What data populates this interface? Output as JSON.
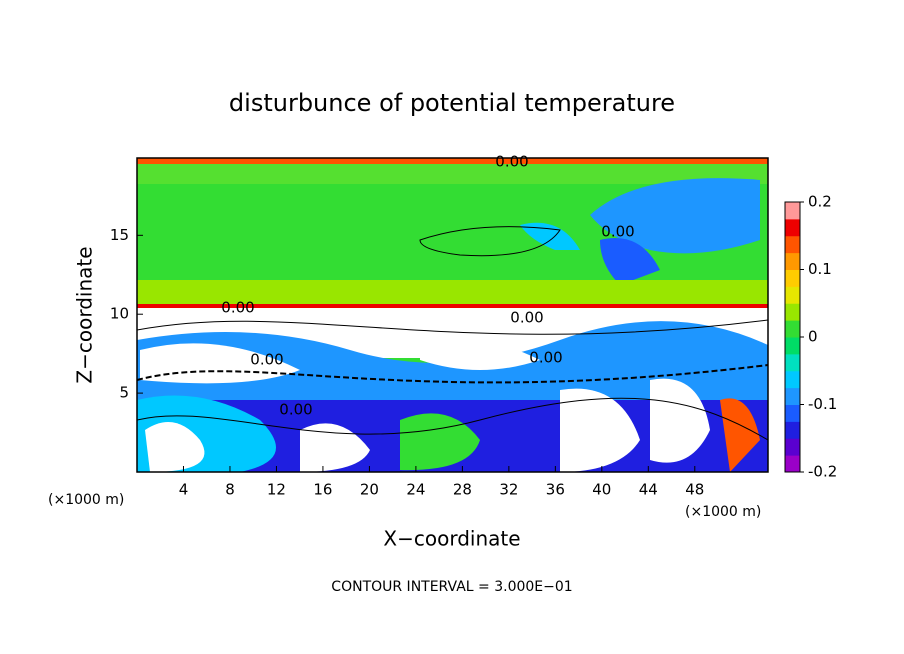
{
  "chart_data": {
    "type": "contour",
    "title": "disturbunce of potential temperature",
    "x_label": "X−coordinate",
    "y_label": "Z−coordinate",
    "x_unit": "(×1000 m)",
    "x_unit_right": "(×1000 m)",
    "footnote": "CONTOUR INTERVAL = 3.000E−01",
    "xlim": [
      0,
      54.3
    ],
    "xticks": [
      4,
      8,
      12,
      16,
      20,
      24,
      28,
      32,
      36,
      40,
      44,
      48
    ],
    "ylim": [
      0,
      19.9
    ],
    "yticks": [
      5,
      10,
      15
    ],
    "contour_labels": [
      "0.00",
      "0.00",
      "0.00",
      "0.00",
      "0.00",
      "0.00",
      "0.00"
    ],
    "colorbar": {
      "lim": [
        -0.2,
        0.2
      ],
      "ticks": [
        -0.2,
        -0.1,
        0,
        0.1,
        0.2
      ],
      "colors": [
        "#9a00c8",
        "#5a00d0",
        "#1f1fe0",
        "#1a5cff",
        "#1e96ff",
        "#00c8ff",
        "#00e0c0",
        "#00dd66",
        "#33dd33",
        "#99e600",
        "#e6e600",
        "#ffcc00",
        "#ff9900",
        "#ff5500",
        "#ee0000",
        "#ff9999"
      ]
    }
  }
}
